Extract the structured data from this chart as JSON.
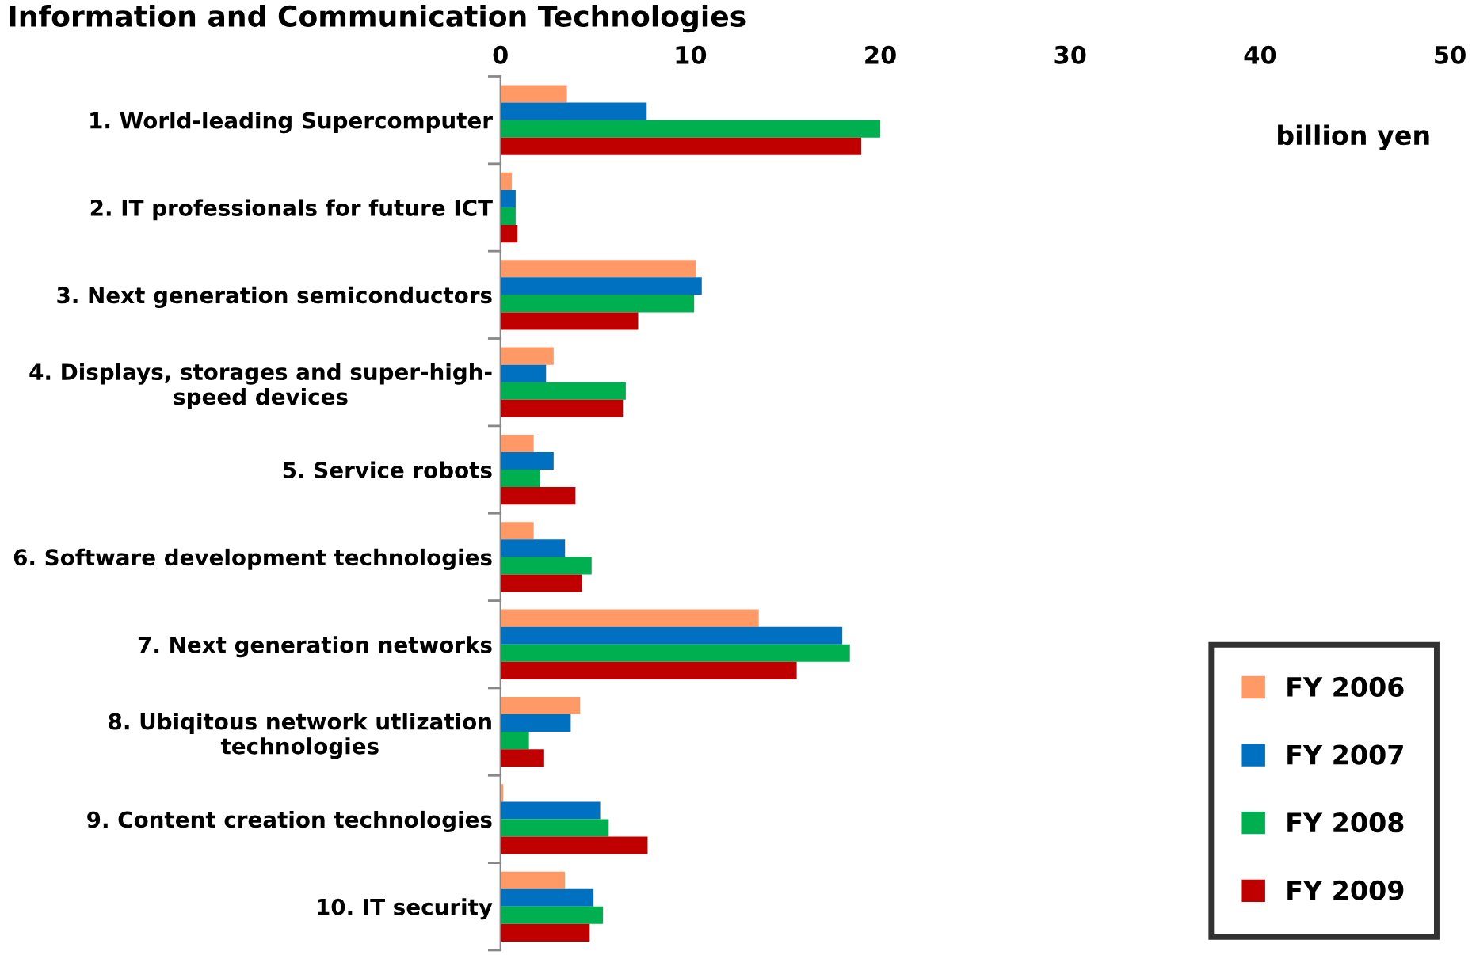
{
  "chart_data": {
    "type": "bar",
    "orientation": "horizontal",
    "title": "Information and Communication Technologies",
    "categories": [
      "1. World-leading Supercomputer",
      "2. IT professionals for future ICT",
      "3. Next generation semiconductors",
      "4. Displays, storages and super-high-\nspeed devices",
      "5. Service robots",
      "6. Software development technologies",
      "7. Next generation networks",
      "8. Ubiqitous network utlization\ntechnologies",
      "9. Content creation technologies",
      "10. IT security"
    ],
    "series": [
      {
        "name": "FY 2006",
        "color": "#ff9966",
        "values": [
          3.5,
          0.6,
          10.3,
          2.8,
          1.75,
          1.75,
          13.6,
          4.2,
          0.15,
          3.4
        ]
      },
      {
        "name": "FY 2007",
        "color": "#0070c0",
        "values": [
          7.7,
          0.8,
          10.6,
          2.4,
          2.8,
          3.4,
          18.0,
          3.7,
          5.25,
          4.9
        ]
      },
      {
        "name": "FY 2008",
        "color": "#00b050",
        "values": [
          20.0,
          0.8,
          10.2,
          6.6,
          2.1,
          4.8,
          18.4,
          1.5,
          5.7,
          5.4
        ]
      },
      {
        "name": "FY 2009",
        "color": "#c00000",
        "values": [
          19.0,
          0.9,
          7.25,
          6.45,
          3.95,
          4.3,
          15.6,
          2.3,
          7.75,
          4.7
        ]
      }
    ],
    "xlim": [
      0,
      50
    ],
    "xticks": [
      0,
      10,
      20,
      30,
      40,
      50
    ],
    "grid": false,
    "legend": "bottom right",
    "annotations": [
      "billion yen"
    ]
  }
}
